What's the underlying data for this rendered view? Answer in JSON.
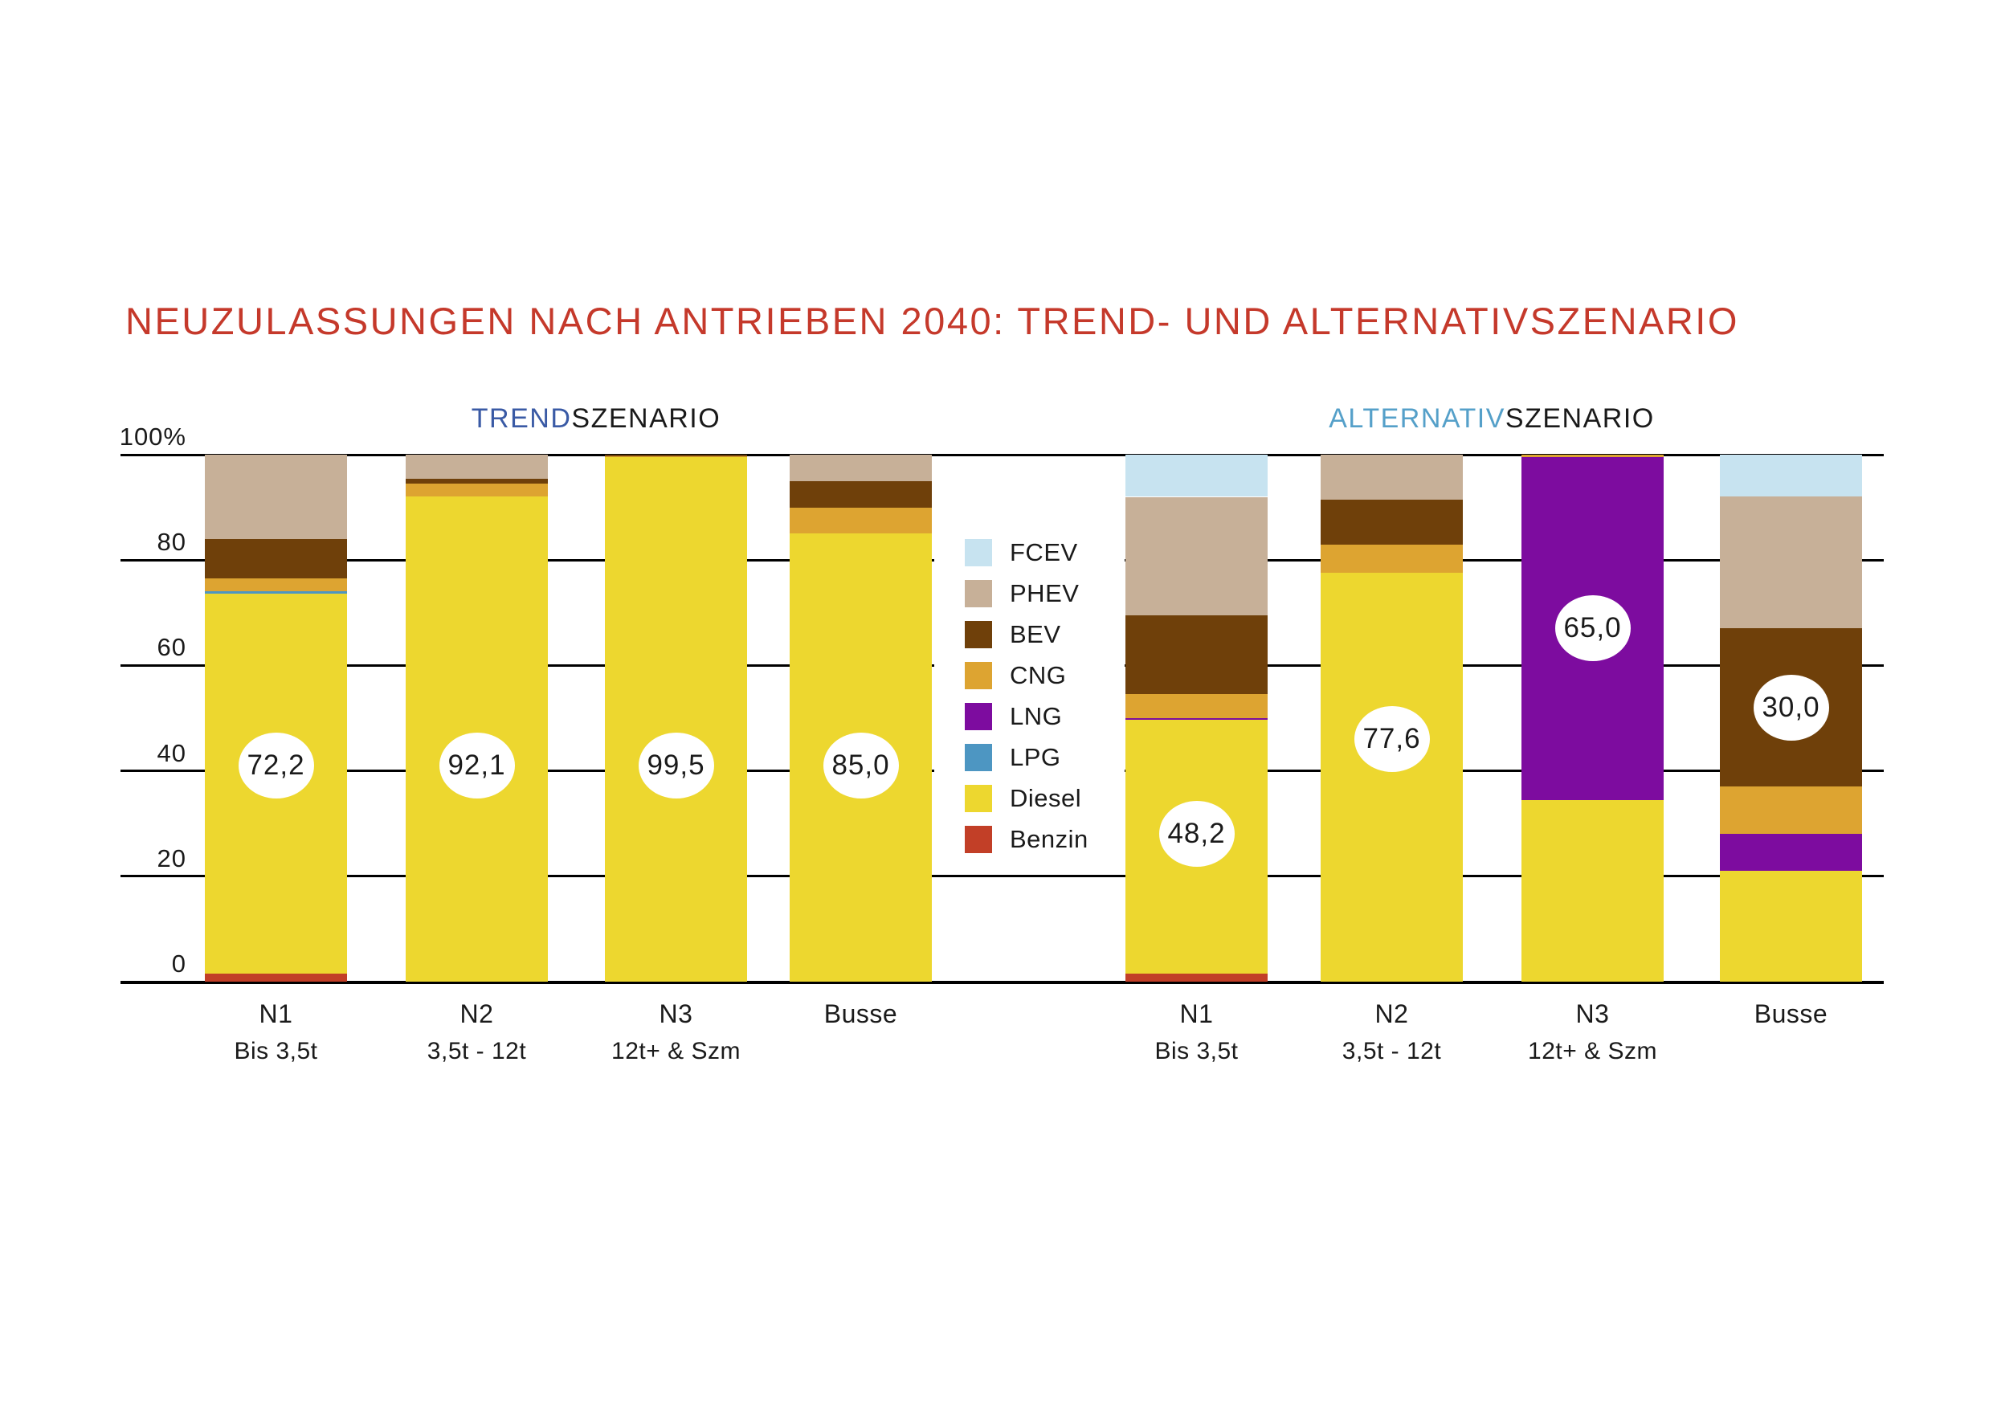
{
  "title": "NEUZULASSUNGEN NACH ANTRIEBEN 2040: TREND- UND ALTERNATIVSZENARIO",
  "title_color": "#C5392B",
  "chart_data": {
    "type": "bar",
    "stacked": true,
    "unit": "%",
    "ylim": [
      0,
      100
    ],
    "grid": "horizontal",
    "yticks": [
      0,
      20,
      40,
      60,
      80,
      100
    ],
    "ytick_labels": [
      "0",
      "20",
      "40",
      "60",
      "80",
      "100%"
    ],
    "legend_position": "center-between-groups",
    "legend": [
      {
        "label": "FCEV",
        "color": "#C7E3F0"
      },
      {
        "label": "PHEV",
        "color": "#C7B098"
      },
      {
        "label": "BEV",
        "color": "#6F400A"
      },
      {
        "label": "CNG",
        "color": "#DDA431"
      },
      {
        "label": "LNG",
        "color": "#7D0C9F"
      },
      {
        "label": "LPG",
        "color": "#4D96C2"
      },
      {
        "label": "Diesel",
        "color": "#EDD72F"
      },
      {
        "label": "Benzin",
        "color": "#C23F27"
      }
    ],
    "stack_order_bottom_to_top": [
      "Benzin",
      "Diesel",
      "LPG",
      "LNG",
      "CNG",
      "BEV",
      "PHEV",
      "FCEV"
    ],
    "groups": [
      {
        "title_accent": "TREND",
        "title_rest": "SZENARIO",
        "accent_color": "#3A5AA5",
        "bars": [
          {
            "category": "N1",
            "sublabel": "Bis 3,5t",
            "value_label": "72,2",
            "label_center_pct": 41,
            "values": {
              "Benzin": 1.5,
              "Diesel": 72.2,
              "LPG": 0.4,
              "CNG": 2.4,
              "BEV": 7.5,
              "PHEV": 16.0
            }
          },
          {
            "category": "N2",
            "sublabel": "3,5t - 12t",
            "value_label": "92,1",
            "label_center_pct": 41,
            "values": {
              "Diesel": 92.1,
              "CNG": 2.4,
              "BEV": 0.9,
              "PHEV": 4.6
            }
          },
          {
            "category": "N3",
            "sublabel": "12t+ & Szm",
            "value_label": "99,5",
            "label_center_pct": 41,
            "values": {
              "Diesel": 99.5,
              "CNG": 0.2,
              "BEV": 0.3
            }
          },
          {
            "category": "Busse",
            "sublabel": "",
            "value_label": "85,0",
            "label_center_pct": 41,
            "values": {
              "Diesel": 85.0,
              "CNG": 5.0,
              "BEV": 5.0,
              "PHEV": 5.0
            }
          }
        ]
      },
      {
        "title_accent": "ALTERNATIV",
        "title_rest": "SZENARIO",
        "accent_color": "#55A0C9",
        "bars": [
          {
            "category": "N1",
            "sublabel": "Bis 3,5t",
            "value_label": "48,2",
            "label_center_pct": 28,
            "values": {
              "Benzin": 1.5,
              "Diesel": 48.2,
              "LNG": 0.3,
              "CNG": 4.5,
              "BEV": 15.0,
              "PHEV": 22.5,
              "FCEV": 8.0
            }
          },
          {
            "category": "N2",
            "sublabel": "3,5t - 12t",
            "value_label": "77,6",
            "label_center_pct": 46,
            "values": {
              "Diesel": 77.6,
              "CNG": 5.4,
              "BEV": 8.4,
              "PHEV": 8.6
            }
          },
          {
            "category": "N3",
            "sublabel": "12t+ & Szm",
            "value_label": "65,0",
            "label_center_pct": 67,
            "values": {
              "Diesel": 34.5,
              "LNG": 65.0,
              "CNG": 0.5
            }
          },
          {
            "category": "Busse",
            "sublabel": "",
            "value_label": "30,0",
            "label_center_pct": 52,
            "values": {
              "Diesel": 21.0,
              "LNG": 7.0,
              "CNG": 9.0,
              "BEV": 30.0,
              "PHEV": 25.0,
              "FCEV": 8.0
            }
          }
        ]
      }
    ]
  }
}
